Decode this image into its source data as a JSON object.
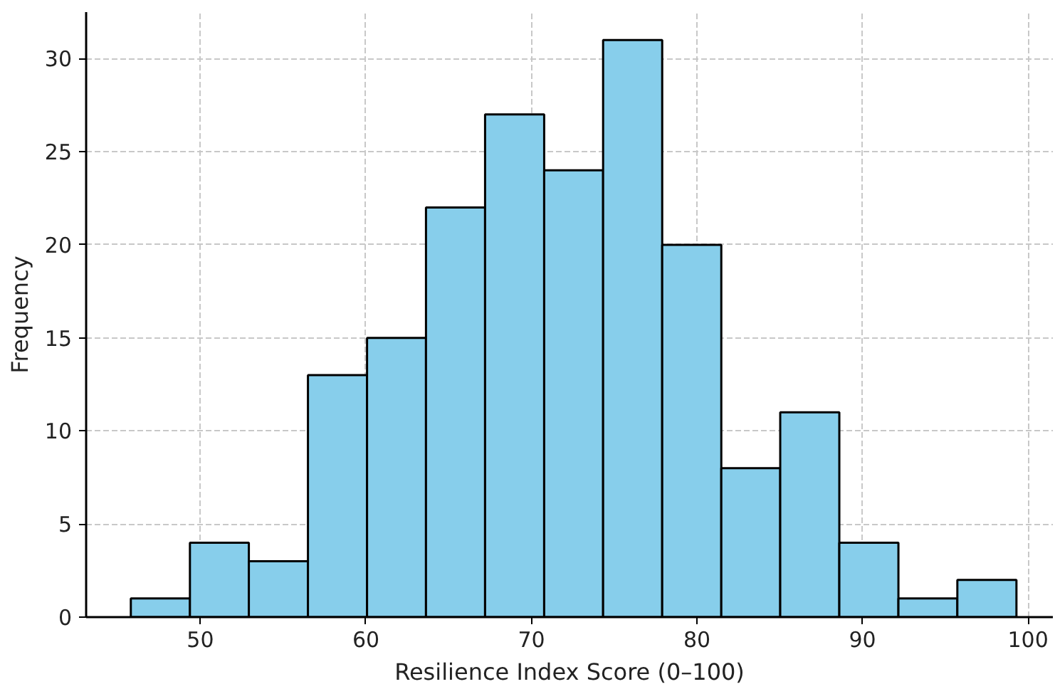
{
  "chart_data": {
    "type": "histogram",
    "xlabel": "Resilience Index Score (0–100)",
    "ylabel": "Frequency",
    "bins": [
      45.8,
      49.37,
      52.93,
      56.5,
      60.07,
      63.63,
      67.2,
      70.77,
      74.33,
      77.9,
      81.47,
      85.03,
      88.6,
      92.17,
      95.73,
      99.3
    ],
    "values": [
      1,
      4,
      3,
      13,
      15,
      22,
      27,
      24,
      31,
      20,
      8,
      11,
      4,
      1,
      2
    ],
    "color": "#87ceeb",
    "xlim": [
      43.1,
      101.5
    ],
    "ylim": [
      0,
      32.5
    ],
    "xticks": [
      50,
      60,
      70,
      80,
      90,
      100
    ],
    "yticks": [
      0,
      5,
      10,
      15,
      20,
      25,
      30
    ],
    "grid": true
  }
}
